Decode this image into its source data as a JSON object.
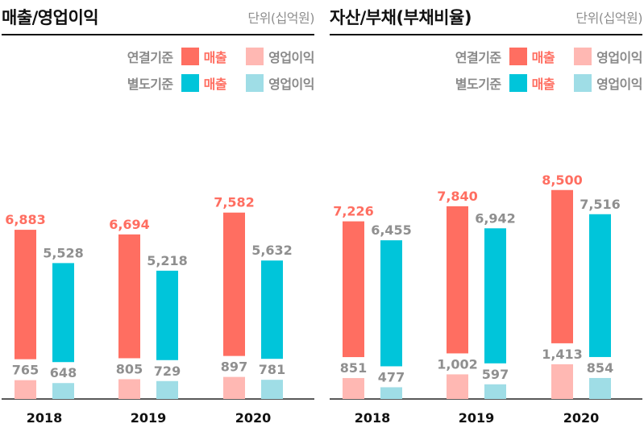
{
  "colors": {
    "consolidated_main": "#ff6e61",
    "consolidated_sub": "#ffb8b3",
    "separate_main": "#00c5da",
    "separate_sub": "#9fdde6",
    "label_main": "#ff6e61",
    "label_sub": "#8f8f8f",
    "axis": "#222222"
  },
  "chart_data": [
    {
      "type": "bar",
      "title": "매출/영업이익",
      "unit": "단위(십억원)",
      "legend": {
        "placement": "top-right",
        "rows": [
          {
            "group": "연결기준",
            "main": "매출",
            "sub": "영업이익"
          },
          {
            "group": "별도기준",
            "main": "매출",
            "sub": "영업이익"
          }
        ]
      },
      "categories": [
        "2018",
        "2019",
        "2020"
      ],
      "series": [
        {
          "name": "연결기준 매출",
          "values": [
            6883,
            6694,
            7582
          ]
        },
        {
          "name": "연결기준 영업이익",
          "values": [
            765,
            805,
            897
          ]
        },
        {
          "name": "별도기준 매출",
          "values": [
            5528,
            5218,
            5632
          ]
        },
        {
          "name": "별도기준 영업이익",
          "values": [
            648,
            729,
            781
          ]
        }
      ],
      "value_labels": {
        "consolidated_main": [
          "6,883",
          "6,694",
          "7,582"
        ],
        "consolidated_sub": [
          "765",
          "805",
          "897"
        ],
        "separate_main": [
          "5,528",
          "5,218",
          "5,632"
        ],
        "separate_sub": [
          "648",
          "729",
          "781"
        ]
      }
    },
    {
      "type": "bar",
      "title": "자산/부채(부채비율)",
      "unit": "단위(십억원)",
      "legend": {
        "placement": "top-right",
        "rows": [
          {
            "group": "연결기준",
            "main": "매출",
            "sub": "영업이익"
          },
          {
            "group": "별도기준",
            "main": "매출",
            "sub": "영업이익"
          }
        ]
      },
      "categories": [
        "2018",
        "2019",
        "2020"
      ],
      "series": [
        {
          "name": "연결기준 매출",
          "values": [
            7226,
            7840,
            8500
          ]
        },
        {
          "name": "연결기준 영업이익",
          "values": [
            851,
            1002,
            1413
          ]
        },
        {
          "name": "별도기준 매출",
          "values": [
            6455,
            6942,
            7516
          ]
        },
        {
          "name": "별도기준 영업이익",
          "values": [
            477,
            597,
            854
          ]
        }
      ],
      "value_labels": {
        "consolidated_main": [
          "7,226",
          "7,840",
          "8,500"
        ],
        "consolidated_sub": [
          "851",
          "1,002",
          "1,413"
        ],
        "separate_main": [
          "6,455",
          "6,942",
          "7,516"
        ],
        "separate_sub": [
          "477",
          "597",
          "854"
        ]
      }
    }
  ]
}
